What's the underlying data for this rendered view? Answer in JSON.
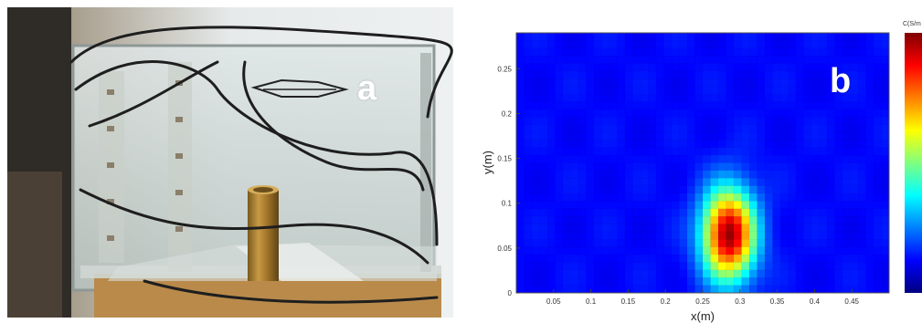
{
  "panels": {
    "photo": {
      "letter": "a"
    },
    "map": {
      "letter": "b"
    }
  },
  "colorbar": {
    "title": "C(S/m"
  },
  "chart_data": {
    "type": "heatmap",
    "title": "",
    "xlabel": "x(m)",
    "ylabel": "y(m)",
    "xlim": [
      0,
      0.5
    ],
    "ylim": [
      0,
      0.29
    ],
    "x_ticks": [
      {
        "value": 0.05,
        "label": "0.05"
      },
      {
        "value": 0.1,
        "label": "0.1"
      },
      {
        "value": 0.15,
        "label": "0.15"
      },
      {
        "value": 0.2,
        "label": "0.2"
      },
      {
        "value": 0.25,
        "label": "0.25"
      },
      {
        "value": 0.3,
        "label": "0.3"
      },
      {
        "value": 0.35,
        "label": "0.35"
      },
      {
        "value": 0.4,
        "label": "0.4"
      },
      {
        "value": 0.45,
        "label": "0.45"
      }
    ],
    "y_ticks": [
      {
        "value": 0,
        "label": "0"
      },
      {
        "value": 0.05,
        "label": "0.05"
      },
      {
        "value": 0.1,
        "label": "0.1"
      },
      {
        "value": 0.15,
        "label": "0.15"
      },
      {
        "value": 0.2,
        "label": "0.2"
      },
      {
        "value": 0.25,
        "label": "0.25"
      }
    ],
    "anomaly": {
      "x": 0.285,
      "y": 0.065,
      "peak": 1.0
    },
    "colormap": "jet",
    "grid": true
  }
}
